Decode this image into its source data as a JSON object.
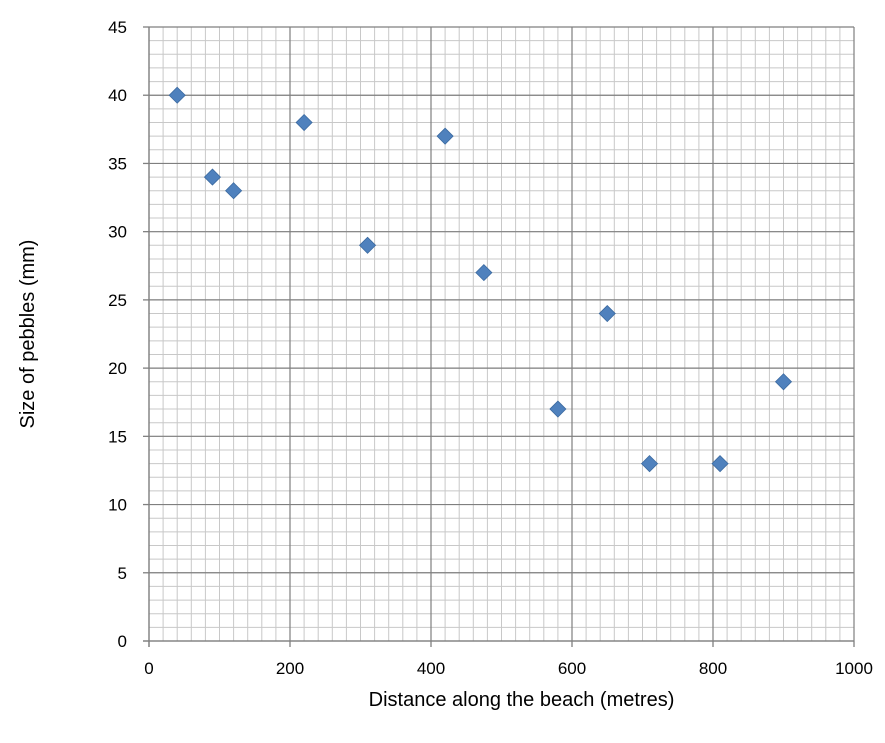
{
  "chart_data": {
    "type": "scatter",
    "xlabel": "Distance along the beach (metres)",
    "ylabel": "Size of pebbles (mm)",
    "xlim": [
      0,
      1000
    ],
    "ylim": [
      0,
      45
    ],
    "x_major_ticks": [
      0,
      200,
      400,
      600,
      800,
      1000
    ],
    "y_major_ticks": [
      0,
      5,
      10,
      15,
      20,
      25,
      30,
      35,
      40,
      45
    ],
    "x_minor_step": 20,
    "y_minor_step": 1,
    "grid": true,
    "marker": "diamond",
    "marker_color": "#4F81BD",
    "points": [
      {
        "x": 40,
        "y": 40
      },
      {
        "x": 90,
        "y": 34
      },
      {
        "x": 120,
        "y": 33
      },
      {
        "x": 220,
        "y": 38
      },
      {
        "x": 310,
        "y": 29
      },
      {
        "x": 420,
        "y": 37
      },
      {
        "x": 475,
        "y": 27
      },
      {
        "x": 580,
        "y": 17
      },
      {
        "x": 650,
        "y": 24
      },
      {
        "x": 710,
        "y": 13
      },
      {
        "x": 810,
        "y": 13
      },
      {
        "x": 900,
        "y": 19
      }
    ]
  }
}
